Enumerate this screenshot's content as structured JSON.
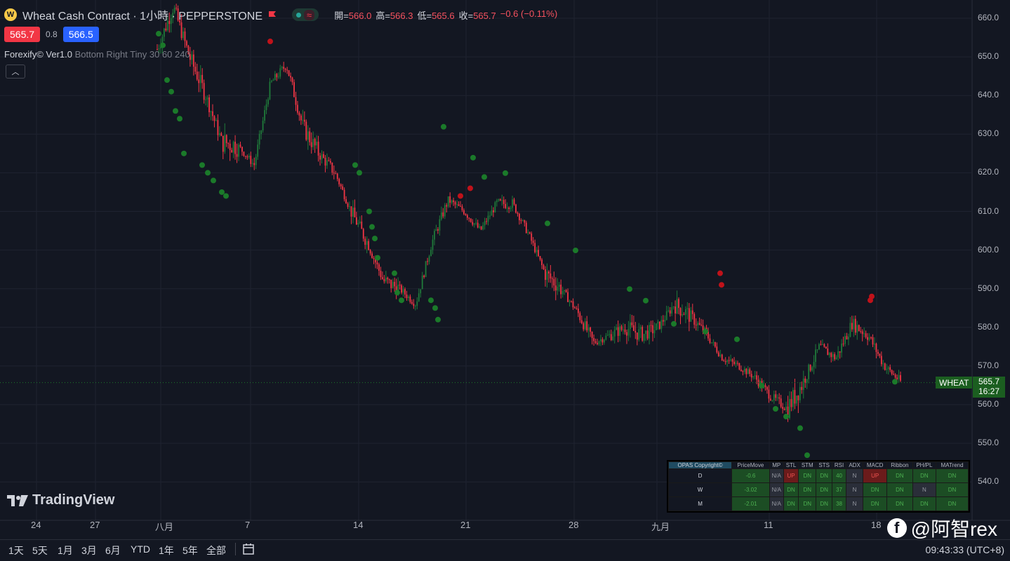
{
  "header": {
    "symbol_logo": "wheat-icon",
    "title": "Wheat Cash Contract · 1小時 · PEPPERSTONE",
    "ohlc": {
      "open_label": "開=",
      "open": "566.0",
      "high_label": "高=",
      "high": "566.3",
      "low_label": "低=",
      "low": "565.6",
      "close_label": "收=",
      "close": "565.7",
      "change": "−0.6 (−0.11%)"
    }
  },
  "quote": {
    "sell": "565.7",
    "spread": "0.8",
    "buy": "566.5"
  },
  "indicator": {
    "name": "Forexify© Ver1.0",
    "params": "Bottom Right Tiny 30 60 240"
  },
  "price_axis": {
    "ticks": [
      "660.0",
      "650.0",
      "640.0",
      "630.0",
      "620.0",
      "610.0",
      "600.0",
      "590.0",
      "580.0",
      "570.0",
      "560.0",
      "550.0",
      "540.0"
    ],
    "symbol_tag": "WHEAT",
    "last_price": "565.7",
    "countdown": "16:27"
  },
  "time_axis": {
    "labels": [
      "24",
      "27",
      "八月",
      "7",
      "14",
      "21",
      "28",
      "九月",
      "11",
      "18"
    ]
  },
  "branding": {
    "logo": "TradingView"
  },
  "bottom_bar": {
    "ranges": [
      "1天",
      "5天",
      "1月",
      "3月",
      "6月",
      "YTD",
      "1年",
      "5年",
      "全部"
    ],
    "clock": "09:43:33 (UTC+8)"
  },
  "watermark": "@阿智rex",
  "opas": {
    "corner": "OPAS Copyright©",
    "headers": [
      "PriceMove",
      "MP",
      "STL",
      "STM",
      "STS",
      "RSI",
      "ADX",
      "MACD",
      "Ribbon",
      "PH/PL",
      "MATrend"
    ],
    "rows": [
      {
        "label": "D",
        "cells": [
          "-0.6",
          "N/A",
          "UP",
          "DN",
          "DN",
          "40",
          "N",
          "UP",
          "DN",
          "DN",
          "DN"
        ]
      },
      {
        "label": "W",
        "cells": [
          "-3.02",
          "N/A",
          "DN",
          "DN",
          "DN",
          "37",
          "N",
          "DN",
          "DN",
          "N",
          "DN"
        ]
      },
      {
        "label": "M",
        "cells": [
          "-2.01",
          "N/A",
          "DN",
          "DN",
          "DN",
          "38",
          "N",
          "DN",
          "DN",
          "DN",
          "DN"
        ]
      }
    ]
  },
  "colors": {
    "up": "#26a69a",
    "down": "#f23645",
    "bg": "#131722",
    "grid": "#1f2330",
    "dot_green": "#1b7a2a",
    "dot_red": "#c0121a"
  },
  "chart_data": {
    "type": "candlestick",
    "ylim": [
      535,
      664
    ],
    "x_ticks": [
      "24",
      "27",
      "八月",
      "7",
      "14",
      "21",
      "28",
      "九月",
      "11",
      "18"
    ],
    "series": [
      {
        "values": [
          [
            645,
            656,
            652
          ],
          [
            657,
            668,
            663
          ],
          [
            647,
            660,
            650
          ],
          [
            636,
            646,
            640
          ],
          [
            623,
            640,
            628
          ],
          [
            626,
            630,
            627
          ],
          [
            619,
            626,
            622
          ],
          [
            639,
            646,
            643
          ],
          [
            642,
            651,
            648
          ],
          [
            628,
            641,
            632
          ],
          [
            622,
            631,
            625
          ],
          [
            617,
            623,
            620
          ],
          [
            606,
            617,
            610
          ],
          [
            600,
            608,
            602
          ],
          [
            588,
            600,
            592
          ],
          [
            589,
            593,
            590
          ],
          [
            584,
            591,
            586
          ],
          [
            598,
            606,
            602
          ],
          [
            610,
            616,
            613
          ],
          [
            608,
            614,
            610
          ],
          [
            603,
            609,
            605
          ],
          [
            606,
            614,
            612
          ],
          [
            610,
            615,
            612
          ],
          [
            602,
            607,
            604
          ],
          [
            590,
            603,
            594
          ],
          [
            589,
            592,
            590
          ],
          [
            581,
            590,
            584
          ],
          [
            574,
            580,
            576
          ],
          [
            575,
            584,
            578
          ],
          [
            576,
            588,
            580
          ],
          [
            575,
            585,
            578
          ],
          [
            577,
            584,
            580
          ],
          [
            580,
            593,
            586
          ],
          [
            578,
            587,
            583
          ],
          [
            576,
            582,
            578
          ],
          [
            570,
            576,
            572
          ],
          [
            568,
            573,
            570
          ],
          [
            563,
            570,
            567
          ],
          [
            560,
            567,
            562
          ],
          [
            551,
            567,
            559
          ],
          [
            560,
            569,
            566
          ],
          [
            571,
            578,
            575
          ],
          [
            569,
            578,
            572
          ],
          [
            576,
            586,
            581
          ],
          [
            576,
            584,
            578
          ],
          [
            571,
            578,
            570
          ],
          [
            566,
            571,
            566
          ]
        ]
      }
    ],
    "markers_bull": [
      [
        632,
        633
      ],
      [
        674,
        625
      ],
      [
        690,
        620
      ],
      [
        720,
        621
      ],
      [
        780,
        608
      ],
      [
        820,
        601
      ],
      [
        897,
        591
      ],
      [
        920,
        588
      ],
      [
        960,
        582
      ],
      [
        1005,
        580
      ],
      [
        1050,
        578
      ],
      [
        1085,
        566
      ],
      [
        1105,
        560
      ],
      [
        1120,
        558
      ],
      [
        1140,
        555
      ],
      [
        1150,
        548
      ],
      [
        1275,
        567
      ]
    ],
    "markers_bear": [
      [
        385,
        654
      ],
      [
        656,
        614
      ],
      [
        670,
        616
      ],
      [
        1026,
        594
      ],
      [
        1028,
        591
      ],
      [
        1240,
        587
      ],
      [
        1242,
        588
      ]
    ]
  }
}
